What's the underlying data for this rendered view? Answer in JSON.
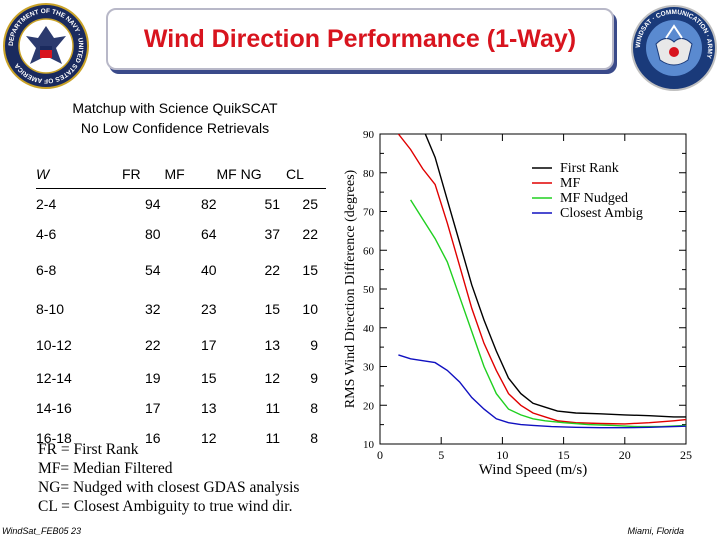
{
  "title": "Wind Direction Performance (1-Way)",
  "subtitle_line1": "Matchup with Science QuikSCAT",
  "subtitle_line2": "No Low Confidence Retrievals",
  "seal_left_text": "DEPARTMENT OF THE NAVY · UNITED STATES OF AMERICA",
  "seal_right_text": "WINDSAT · COMMUNICATION · ARMY",
  "table": {
    "headers": [
      "W",
      "FR",
      "MF",
      "MF NG",
      "CL"
    ],
    "rows": [
      [
        "2-4",
        "94",
        "82",
        "51",
        "25"
      ],
      [
        "4-6",
        "80",
        "64",
        "37",
        "22"
      ],
      [
        "6-8",
        "54",
        "40",
        "22",
        "15"
      ],
      [
        "8-10",
        "32",
        "23",
        "15",
        "10"
      ],
      [
        "10-12",
        "22",
        "17",
        "13",
        "9"
      ],
      [
        "12-14",
        "19",
        "15",
        "12",
        "9"
      ],
      [
        "14-16",
        "17",
        "13",
        "11",
        "8"
      ],
      [
        "16-18",
        "16",
        "12",
        "11",
        "8"
      ]
    ]
  },
  "notes": [
    "FR = First Rank",
    "MF= Median Filtered",
    "NG= Nudged with closest GDAS analysis",
    "CL = Closest Ambiguity to true wind dir."
  ],
  "footer_left": "WindSat_FEB05 23",
  "footer_right": "Miami, Florida",
  "colors": {
    "title": "#d8141e",
    "first_rank": "#000000",
    "mf": "#e00000",
    "mf_nudged": "#20d020",
    "closest": "#1010c0"
  },
  "chart_data": {
    "type": "line",
    "xlabel": "Wind Speed (m/s)",
    "ylabel": "RMS Wind Direction Difference (degrees)",
    "xlim": [
      0,
      25
    ],
    "ylim": [
      10,
      90
    ],
    "xticks": [
      "0",
      "5",
      "10",
      "15",
      "20",
      "25"
    ],
    "yticks": [
      "10",
      "20",
      "30",
      "40",
      "50",
      "60",
      "70",
      "80",
      "90"
    ],
    "legend_position": "top-right",
    "grid": false,
    "series": [
      {
        "name": "First Rank",
        "color": "#000000",
        "points": [
          [
            3.7,
            90
          ],
          [
            4.5,
            84
          ],
          [
            5.5,
            73
          ],
          [
            6.5,
            62
          ],
          [
            7.5,
            51
          ],
          [
            8.5,
            42
          ],
          [
            9.5,
            34
          ],
          [
            10.5,
            27
          ],
          [
            11.5,
            23
          ],
          [
            12.5,
            20.5
          ],
          [
            13.5,
            19.5
          ],
          [
            14.5,
            18.5
          ],
          [
            16,
            18
          ],
          [
            18,
            17.8
          ],
          [
            20,
            17.5
          ],
          [
            22,
            17.3
          ],
          [
            24,
            17
          ],
          [
            25,
            17
          ]
        ]
      },
      {
        "name": "MF",
        "color": "#e00000",
        "points": [
          [
            1.5,
            90
          ],
          [
            2.5,
            86
          ],
          [
            3.5,
            81
          ],
          [
            4.5,
            77
          ],
          [
            5.5,
            67
          ],
          [
            6.5,
            56
          ],
          [
            7.5,
            45
          ],
          [
            8.5,
            36
          ],
          [
            9.5,
            29
          ],
          [
            10.5,
            23
          ],
          [
            11.5,
            20
          ],
          [
            12.5,
            18
          ],
          [
            13.5,
            17
          ],
          [
            14.5,
            16
          ],
          [
            16,
            15.5
          ],
          [
            18,
            15.3
          ],
          [
            20,
            15.2
          ],
          [
            22,
            15.5
          ],
          [
            24,
            16
          ],
          [
            25,
            16.3
          ]
        ]
      },
      {
        "name": "MF Nudged",
        "color": "#20d020",
        "points": [
          [
            2.5,
            73
          ],
          [
            3.5,
            68
          ],
          [
            4.5,
            63
          ],
          [
            5.5,
            57
          ],
          [
            6.5,
            48
          ],
          [
            7.5,
            39
          ],
          [
            8.5,
            30
          ],
          [
            9.5,
            23
          ],
          [
            10.5,
            19
          ],
          [
            11.5,
            17.5
          ],
          [
            12.5,
            16.5
          ],
          [
            13.5,
            16
          ],
          [
            15,
            15.5
          ],
          [
            17,
            15
          ],
          [
            19,
            14.8
          ],
          [
            21,
            14.5
          ],
          [
            23,
            14.5
          ],
          [
            25,
            14.8
          ]
        ]
      },
      {
        "name": "Closest Ambig",
        "color": "#1010c0",
        "points": [
          [
            1.5,
            33
          ],
          [
            2.5,
            32
          ],
          [
            3.5,
            31.5
          ],
          [
            4.5,
            31
          ],
          [
            5.5,
            29
          ],
          [
            6.5,
            26
          ],
          [
            7.5,
            22
          ],
          [
            8.5,
            19
          ],
          [
            9.5,
            16.5
          ],
          [
            10.5,
            15.5
          ],
          [
            11.5,
            15
          ],
          [
            12.5,
            14.8
          ],
          [
            14,
            14.5
          ],
          [
            16,
            14.3
          ],
          [
            18,
            14.2
          ],
          [
            20,
            14.2
          ],
          [
            22,
            14.3
          ],
          [
            24,
            14.5
          ],
          [
            25,
            14.6
          ]
        ]
      }
    ]
  }
}
